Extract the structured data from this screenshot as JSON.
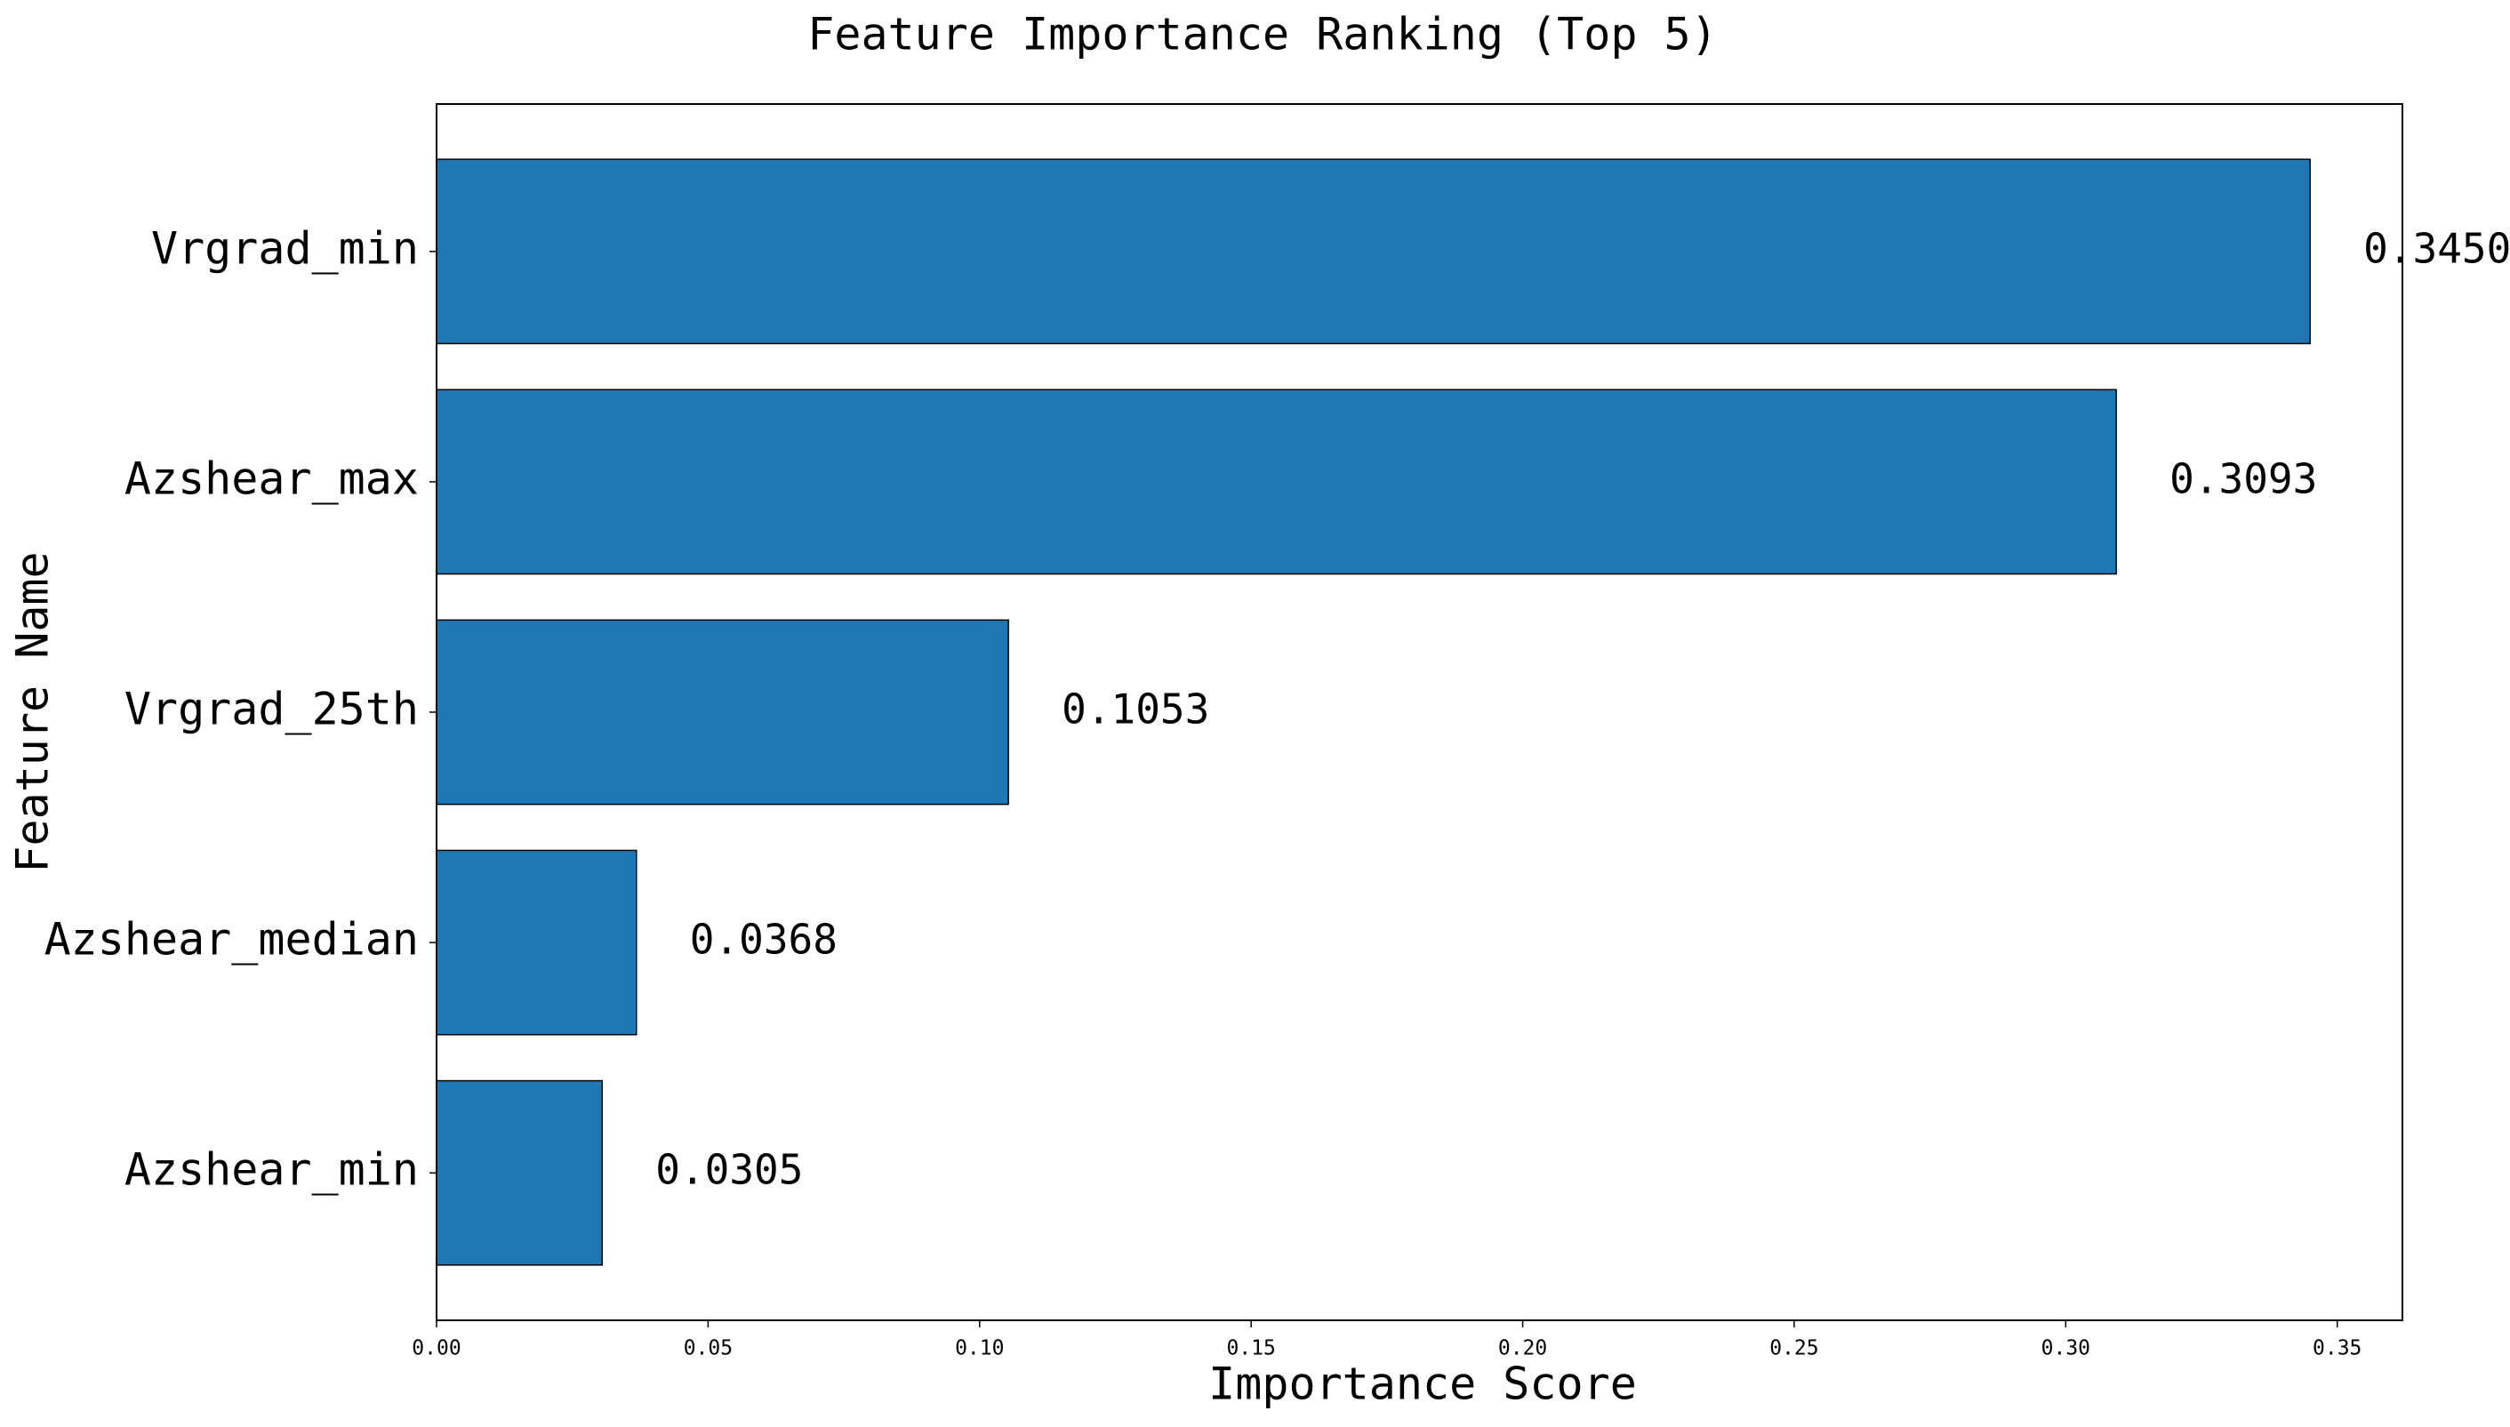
{
  "chart_data": {
    "type": "barh",
    "title": "Feature Importance Ranking (Top 5)",
    "x_label": "Importance Score",
    "y_label": "Feature Name",
    "categories": [
      "Vrgrad_min",
      "Azshear_max",
      "Vrgrad_25th",
      "Azshear_median",
      "Azshear_min"
    ],
    "values": [
      0.345,
      0.3093,
      0.1053,
      0.0368,
      0.0305
    ],
    "value_labels": [
      "0.3450",
      "0.3093",
      "0.1053",
      "0.0368",
      "0.0305"
    ],
    "color": "#1f77b4",
    "xlim": [
      0,
      0.362
    ],
    "xticks": [
      {
        "value": 0,
        "label": "0.00"
      },
      0.05,
      {
        "value": 0.1,
        "label": "0.10"
      },
      0.15,
      {
        "value": 0.2,
        "label": "0.20"
      },
      0.25,
      {
        "value": 0.3,
        "label": "0.30"
      },
      0.35
    ],
    "grid": false
  }
}
